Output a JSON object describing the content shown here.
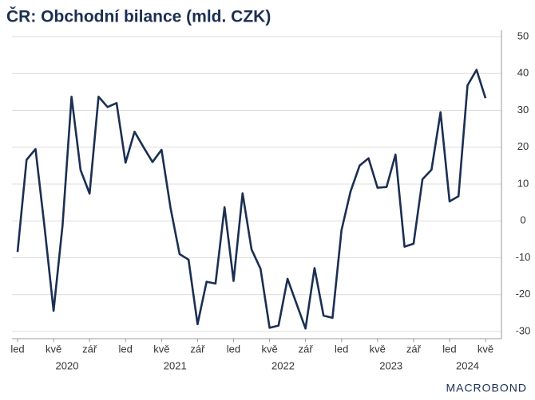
{
  "chart_data": {
    "type": "line",
    "title": "ČR: Obchodní bilance (mld. CZK)",
    "source": "MACROBOND",
    "color": "#1b2f52",
    "x": [
      "2020-01",
      "2020-02",
      "2020-03",
      "2020-04",
      "2020-05",
      "2020-06",
      "2020-07",
      "2020-08",
      "2020-09",
      "2020-10",
      "2020-11",
      "2020-12",
      "2021-01",
      "2021-02",
      "2021-03",
      "2021-04",
      "2021-05",
      "2021-06",
      "2021-07",
      "2021-08",
      "2021-09",
      "2021-10",
      "2021-11",
      "2021-12",
      "2022-01",
      "2022-02",
      "2022-03",
      "2022-04",
      "2022-05",
      "2022-06",
      "2022-07",
      "2022-08",
      "2022-09",
      "2022-10",
      "2022-11",
      "2022-12",
      "2023-01",
      "2023-02",
      "2023-03",
      "2023-04",
      "2023-05",
      "2023-06",
      "2023-07",
      "2023-08",
      "2023-09",
      "2023-10",
      "2023-11",
      "2023-12",
      "2024-01",
      "2024-02",
      "2024-03",
      "2024-04",
      "2024-05"
    ],
    "values": [
      -8.4,
      16.6,
      19.5,
      -1.7,
      -24.4,
      -1.3,
      33.7,
      13.8,
      7.4,
      33.7,
      30.9,
      32.0,
      15.8,
      24.2,
      20.0,
      16.0,
      19.3,
      3.5,
      -9.0,
      -10.5,
      -28.0,
      -16.5,
      -17.0,
      3.7,
      -16.3,
      7.5,
      -7.7,
      -13.0,
      -29.0,
      -28.4,
      -15.7,
      -22.5,
      -29.2,
      -12.8,
      -25.7,
      -26.3,
      -2.5,
      8.0,
      15.0,
      17.0,
      9.0,
      9.2,
      18.0,
      -7.0,
      -6.2,
      11.3,
      13.9,
      29.5,
      5.3,
      6.7,
      36.8,
      41.0,
      33.3
    ],
    "ylim": [
      -30,
      50
    ],
    "yticks": [
      -30,
      -20,
      -10,
      0,
      10,
      20,
      30,
      40,
      50
    ],
    "grid": true,
    "xticks": [
      {
        "value": "2020-01",
        "label": "led"
      },
      {
        "value": "2020-05",
        "label": "kvě"
      },
      {
        "value": "2020-09",
        "label": "zář"
      },
      {
        "value": "2021-01",
        "label": "led"
      },
      {
        "value": "2021-05",
        "label": "kvě"
      },
      {
        "value": "2021-09",
        "label": "zář"
      },
      {
        "value": "2022-01",
        "label": "led"
      },
      {
        "value": "2022-05",
        "label": "kvě"
      },
      {
        "value": "2022-09",
        "label": "zář"
      },
      {
        "value": "2023-01",
        "label": "led"
      },
      {
        "value": "2023-05",
        "label": "kvě"
      },
      {
        "value": "2023-09",
        "label": "zář"
      },
      {
        "value": "2024-01",
        "label": "led"
      },
      {
        "value": "2024-05",
        "label": "kvě"
      }
    ],
    "year_labels": [
      "2020",
      "2021",
      "2022",
      "2023",
      "2024"
    ]
  }
}
